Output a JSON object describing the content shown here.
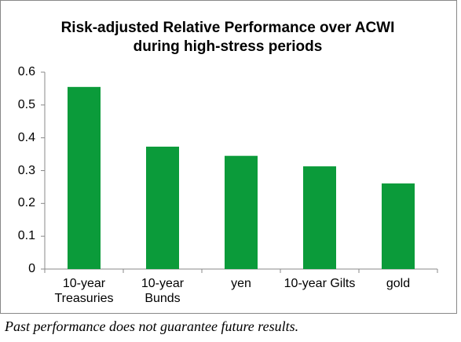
{
  "chart_data": {
    "type": "bar",
    "title": "Risk-adjusted Relative Performance over ACWI during high-stress periods",
    "categories": [
      "10-year Treasuries",
      "10-year Bunds",
      "yen",
      "10-year Gilts",
      "gold"
    ],
    "values": [
      0.555,
      0.373,
      0.345,
      0.313,
      0.261
    ],
    "color": "#0b9b3a",
    "ylim": [
      0,
      0.6
    ],
    "yticks": [
      0,
      0.1,
      0.2,
      0.3,
      0.4,
      0.5,
      0.6
    ],
    "grid": false
  },
  "footnote": "Past performance does not guarantee future results."
}
